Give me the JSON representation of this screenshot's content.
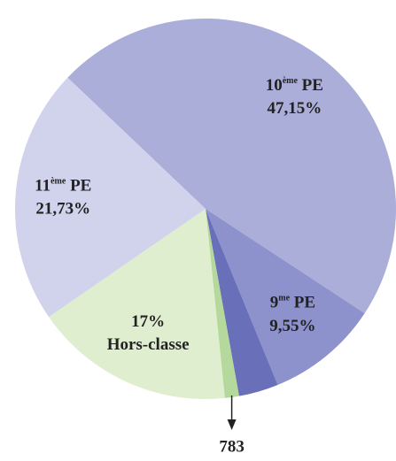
{
  "chart_data": {
    "type": "pie",
    "categories": [
      "10ème PE",
      "9me PE",
      null,
      null,
      "Hors-classe",
      "11ème PE"
    ],
    "values": [
      47.15,
      9.55,
      3.37,
      1.2,
      17,
      21.73
    ],
    "value_labels": [
      "47,15%",
      "9,55%",
      null,
      null,
      "17%",
      "21,73%"
    ],
    "colors": [
      "#aaaed8",
      "#8d91cc",
      "#6a6fba",
      "#b5d99c",
      "#dfeecf",
      "#d1d2ec"
    ],
    "start_angle": -46.4,
    "annotations": [
      {
        "text": "783",
        "slice": 3
      }
    ]
  }
}
